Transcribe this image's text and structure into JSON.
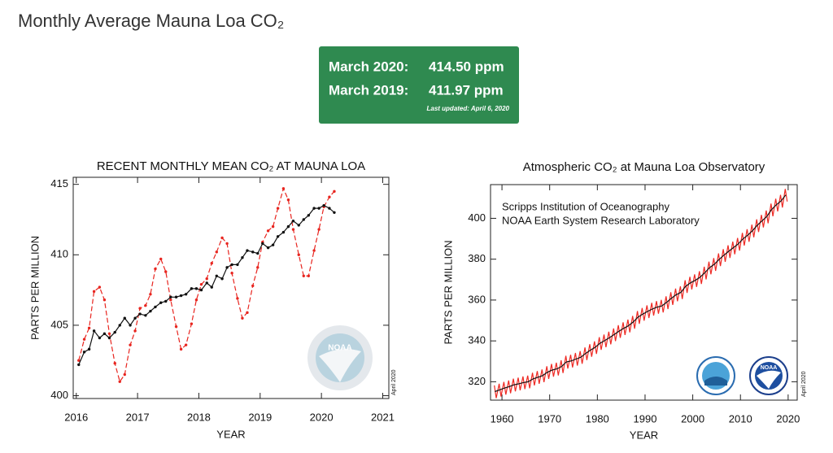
{
  "header": {
    "title": "Monthly Average Mauna Loa CO₂"
  },
  "summary": {
    "rows": [
      {
        "label": "March 2020:",
        "value": "414.50 ppm"
      },
      {
        "label": "March 2019:",
        "value": "411.97 ppm"
      }
    ],
    "updated": "Last updated: April 6, 2020"
  },
  "chart_data": [
    {
      "type": "line",
      "title": "RECENT MONTHLY MEAN CO₂ AT MAUNA LOA",
      "x_label": "YEAR",
      "y_label": "PARTS PER MILLION",
      "note": "April 2020",
      "logo_label": "NOAA",
      "xlim": [
        2015.95,
        2021.1
      ],
      "xticks": [
        2016,
        2017,
        2018,
        2019,
        2020,
        2021
      ],
      "ylim": [
        399.8,
        415.5
      ],
      "yticks": [
        400,
        405,
        410,
        415
      ],
      "series": [
        {
          "color": "#e8251f",
          "line_style": "dashed",
          "marker": "dot",
          "x": [
            2016.04,
            2016.13,
            2016.21,
            2016.29,
            2016.38,
            2016.46,
            2016.54,
            2016.63,
            2016.71,
            2016.79,
            2016.88,
            2016.96,
            2017.04,
            2017.13,
            2017.21,
            2017.29,
            2017.38,
            2017.46,
            2017.54,
            2017.63,
            2017.71,
            2017.79,
            2017.88,
            2017.96,
            2018.04,
            2018.13,
            2018.21,
            2018.29,
            2018.38,
            2018.46,
            2018.54,
            2018.63,
            2018.71,
            2018.79,
            2018.88,
            2018.96,
            2019.04,
            2019.13,
            2019.21,
            2019.29,
            2019.38,
            2019.46,
            2019.54,
            2019.63,
            2019.71,
            2019.79,
            2019.88,
            2019.96,
            2020.04,
            2020.13,
            2020.21
          ],
          "values": [
            402.5,
            404.0,
            404.8,
            407.4,
            407.7,
            406.8,
            404.4,
            402.3,
            401.0,
            401.5,
            403.6,
            404.6,
            406.2,
            406.4,
            407.2,
            409.0,
            409.7,
            408.8,
            406.8,
            404.9,
            403.3,
            403.6,
            405.1,
            406.8,
            407.9,
            408.3,
            409.4,
            410.2,
            411.2,
            410.8,
            408.7,
            406.9,
            405.5,
            405.9,
            407.8,
            409.1,
            410.9,
            411.7,
            412.0,
            413.3,
            414.7,
            413.9,
            411.8,
            410.0,
            408.5,
            408.5,
            410.3,
            411.8,
            413.4,
            414.1,
            414.5
          ]
        },
        {
          "color": "#111111",
          "line_style": "solid",
          "marker": "dot",
          "x": [
            2016.04,
            2016.13,
            2016.21,
            2016.29,
            2016.38,
            2016.46,
            2016.54,
            2016.63,
            2016.71,
            2016.79,
            2016.88,
            2016.96,
            2017.04,
            2017.13,
            2017.21,
            2017.29,
            2017.38,
            2017.46,
            2017.54,
            2017.63,
            2017.71,
            2017.79,
            2017.88,
            2017.96,
            2018.04,
            2018.13,
            2018.21,
            2018.29,
            2018.38,
            2018.46,
            2018.54,
            2018.63,
            2018.71,
            2018.79,
            2018.88,
            2018.96,
            2019.04,
            2019.13,
            2019.21,
            2019.29,
            2019.38,
            2019.46,
            2019.54,
            2019.63,
            2019.71,
            2019.79,
            2019.88,
            2019.96,
            2020.04,
            2020.13,
            2020.21
          ],
          "values": [
            402.2,
            403.1,
            403.3,
            404.6,
            404.1,
            404.4,
            404.1,
            404.5,
            405.0,
            405.5,
            405.0,
            405.5,
            405.8,
            405.7,
            406.0,
            406.3,
            406.6,
            406.7,
            407.0,
            407.0,
            407.1,
            407.2,
            407.6,
            407.6,
            407.5,
            408.0,
            407.7,
            408.5,
            408.3,
            409.1,
            409.3,
            409.3,
            409.8,
            410.3,
            410.2,
            410.1,
            410.8,
            410.5,
            410.7,
            411.3,
            411.6,
            412.0,
            412.4,
            412.1,
            412.5,
            412.8,
            413.3,
            413.3,
            413.5,
            413.3,
            413.0
          ]
        }
      ]
    },
    {
      "type": "line",
      "title": "Atmospheric CO₂ at Mauna Loa Observatory",
      "x_label": "YEAR",
      "y_label": "PARTS PER MILLION",
      "note": "April 2020",
      "logo_label": "NOAA",
      "annotations": [
        "Scripps Institution of Oceanography",
        "NOAA Earth System Research Laboratory"
      ],
      "xlim": [
        1957.6,
        2021.9
      ],
      "xticks": [
        1960,
        1970,
        1980,
        1990,
        2000,
        2010,
        2020
      ],
      "ylim": [
        311,
        416.5
      ],
      "yticks": [
        320,
        340,
        360,
        380,
        400
      ],
      "series": [
        {
          "color": "#ee2a24",
          "line_style": "solid",
          "marker": "none",
          "x": [
            1958.4,
            1958.8,
            1959.4,
            1959.8,
            1960.4,
            1960.8,
            1961.4,
            1961.8,
            1962.4,
            1962.8,
            1963.4,
            1963.8,
            1964.4,
            1964.8,
            1965.4,
            1965.8,
            1966.4,
            1966.8,
            1967.4,
            1967.8,
            1968.4,
            1968.8,
            1969.4,
            1969.8,
            1970.4,
            1970.8,
            1971.4,
            1971.8,
            1972.4,
            1972.8,
            1973.4,
            1973.8,
            1974.4,
            1974.8,
            1975.4,
            1975.8,
            1976.4,
            1976.8,
            1977.4,
            1977.8,
            1978.4,
            1978.8,
            1979.4,
            1979.8,
            1980.4,
            1980.8,
            1981.4,
            1981.8,
            1982.4,
            1982.8,
            1983.4,
            1983.8,
            1984.4,
            1984.8,
            1985.4,
            1985.8,
            1986.4,
            1986.8,
            1987.4,
            1987.8,
            1988.4,
            1988.8,
            1989.4,
            1989.8,
            1990.4,
            1990.8,
            1991.4,
            1991.8,
            1992.4,
            1992.8,
            1993.4,
            1993.8,
            1994.4,
            1994.8,
            1995.4,
            1995.8,
            1996.4,
            1996.8,
            1997.4,
            1997.8,
            1998.4,
            1998.8,
            1999.4,
            1999.8,
            2000.4,
            2000.8,
            2001.4,
            2001.8,
            2002.4,
            2002.8,
            2003.4,
            2003.8,
            2004.4,
            2004.8,
            2005.4,
            2005.8,
            2006.4,
            2006.8,
            2007.4,
            2007.8,
            2008.4,
            2008.8,
            2009.4,
            2009.8,
            2010.4,
            2010.8,
            2011.4,
            2011.8,
            2012.4,
            2012.8,
            2013.4,
            2013.8,
            2014.4,
            2014.8,
            2015.4,
            2015.8,
            2016.4,
            2016.8,
            2017.4,
            2017.8,
            2018.4,
            2018.8,
            2019.4,
            2019.8
          ],
          "values": [
            318.2,
            312.0,
            319.0,
            312.8,
            319.9,
            313.7,
            320.6,
            314.4,
            321.5,
            315.3,
            322.0,
            315.8,
            322.6,
            316.4,
            323.0,
            316.8,
            324.4,
            318.2,
            325.2,
            319.0,
            326.0,
            319.8,
            327.6,
            321.4,
            328.7,
            322.5,
            329.3,
            323.1,
            330.5,
            324.3,
            332.7,
            326.5,
            333.2,
            327.0,
            334.1,
            327.9,
            335.0,
            328.8,
            336.8,
            330.6,
            338.4,
            332.2,
            339.8,
            333.6,
            341.8,
            335.6,
            343.1,
            336.9,
            344.5,
            338.3,
            346.1,
            339.9,
            347.7,
            341.5,
            349.1,
            342.9,
            350.4,
            344.2,
            352.2,
            346.0,
            354.6,
            348.4,
            356.1,
            349.9,
            357.4,
            351.2,
            358.6,
            352.4,
            359.5,
            353.3,
            360.1,
            353.9,
            361.8,
            355.6,
            363.8,
            357.6,
            365.6,
            359.4,
            366.7,
            360.5,
            369.7,
            363.5,
            371.4,
            365.2,
            372.6,
            366.4,
            374.1,
            367.9,
            376.3,
            370.1,
            378.8,
            372.6,
            380.5,
            374.3,
            382.8,
            376.6,
            384.9,
            378.7,
            386.8,
            380.6,
            388.6,
            382.4,
            390.4,
            384.2,
            392.9,
            386.7,
            394.7,
            388.5,
            396.9,
            390.7,
            399.5,
            393.3,
            401.7,
            395.5,
            403.8,
            397.6,
            407.2,
            401.0,
            409.6,
            403.4,
            411.5,
            405.3,
            414.4,
            408.2
          ]
        },
        {
          "color": "#111111",
          "line_style": "solid",
          "marker": "none",
          "x": [
            1958.5,
            1959.5,
            1960.5,
            1961.5,
            1962.5,
            1963.5,
            1964.5,
            1965.5,
            1966.5,
            1967.5,
            1968.5,
            1969.5,
            1970.5,
            1971.5,
            1972.5,
            1973.5,
            1974.5,
            1975.5,
            1976.5,
            1977.5,
            1978.5,
            1979.5,
            1980.5,
            1981.5,
            1982.5,
            1983.5,
            1984.5,
            1985.5,
            1986.5,
            1987.5,
            1988.5,
            1989.5,
            1990.5,
            1991.5,
            1992.5,
            1993.5,
            1994.5,
            1995.5,
            1996.5,
            1997.5,
            1998.5,
            1999.5,
            2000.5,
            2001.5,
            2002.5,
            2003.5,
            2004.5,
            2005.5,
            2006.5,
            2007.5,
            2008.5,
            2009.5,
            2010.5,
            2011.5,
            2012.5,
            2013.5,
            2014.5,
            2015.5,
            2016.5,
            2017.5,
            2018.5,
            2019.5
          ],
          "values": [
            315.2,
            316.0,
            316.9,
            317.6,
            318.5,
            319.0,
            319.6,
            320.0,
            321.4,
            322.2,
            323.0,
            324.6,
            325.7,
            326.3,
            327.5,
            329.7,
            330.2,
            331.1,
            332.0,
            333.8,
            335.4,
            336.8,
            338.8,
            340.1,
            341.5,
            343.1,
            344.7,
            346.1,
            347.4,
            349.2,
            351.6,
            353.1,
            354.4,
            355.6,
            356.5,
            357.1,
            358.8,
            360.8,
            362.6,
            363.7,
            366.7,
            368.4,
            369.6,
            371.1,
            373.3,
            375.8,
            377.5,
            379.8,
            381.9,
            383.8,
            385.6,
            387.4,
            389.9,
            391.7,
            393.9,
            396.5,
            398.7,
            400.8,
            404.2,
            406.6,
            408.5,
            411.4
          ]
        }
      ]
    }
  ]
}
